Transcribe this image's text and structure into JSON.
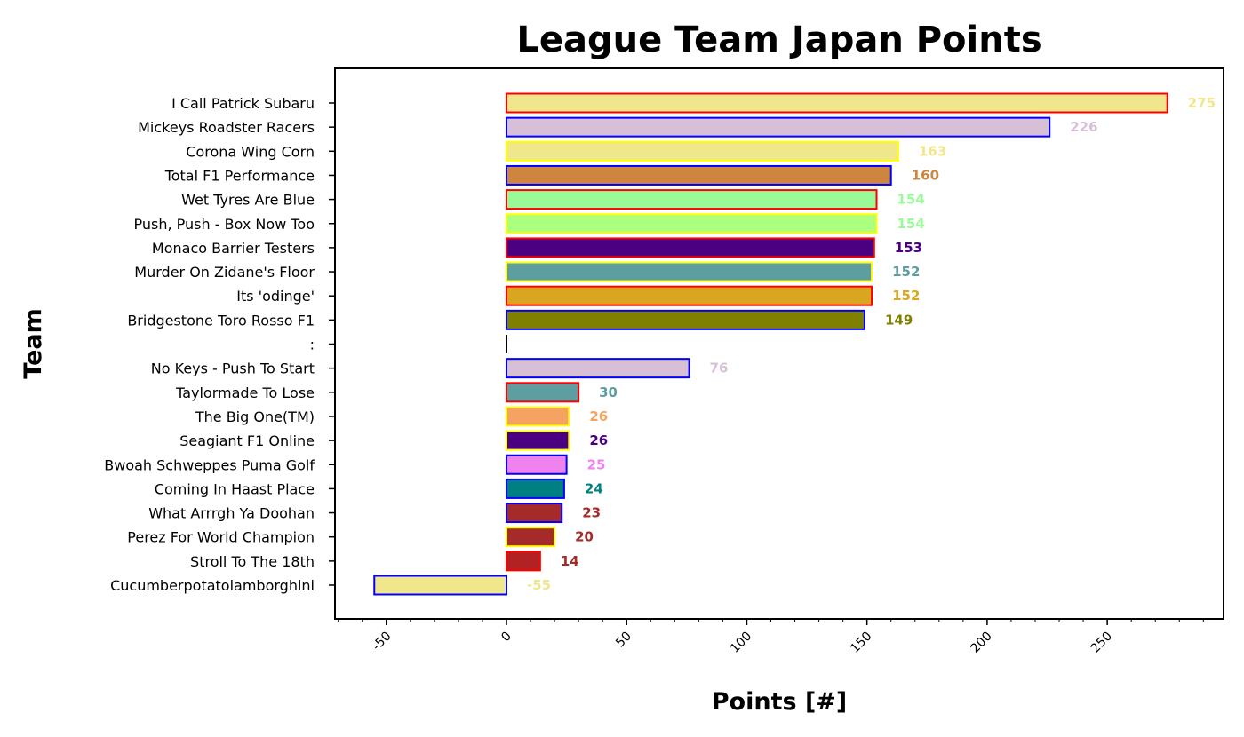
{
  "chart_data": {
    "type": "bar",
    "orientation": "horizontal",
    "title": "League Team Japan Points",
    "xlabel": "Points [#]",
    "ylabel": "Team",
    "xlim": [
      -70,
      297
    ],
    "xticks": [
      "-50",
      "0",
      "50",
      "100",
      "150",
      "200",
      "250"
    ],
    "xtick_values": [
      -50,
      0,
      50,
      100,
      150,
      200,
      250
    ],
    "grid": false,
    "categories": [
      "I Call Patrick Subaru",
      "Mickeys Roadster Racers",
      "Corona Wing Corn",
      "Total F1 Performance",
      "Wet Tyres Are Blue",
      "Push, Push - Box Now Too",
      "Monaco Barrier Testers",
      "Murder On Zidane's Floor",
      "Its 'odinge'",
      "Bridgestone Toro Rosso F1",
      ":",
      "No Keys - Push To Start",
      "Taylormade To Lose",
      "The Big One(TM)",
      "Seagiant F1 Online",
      "Bwoah Schweppes Puma Golf",
      "Coming In Haast Place",
      "What Arrrgh Ya Doohan",
      "Perez For World Champion",
      "Stroll To The 18th",
      "Cucumberpotatolamborghini"
    ],
    "values": [
      275,
      226,
      163,
      160,
      154,
      154,
      153,
      152,
      152,
      149,
      0,
      76,
      30,
      26,
      26,
      25,
      24,
      23,
      20,
      14,
      -55
    ],
    "value_labels": [
      "275",
      "226",
      "163",
      "160",
      "154",
      "154",
      "153",
      "152",
      "152",
      "149",
      "",
      "76",
      "30",
      "26",
      "26",
      "25",
      "24",
      "23",
      "20",
      "14",
      "-55"
    ],
    "fill_colors": [
      "#f0e68c",
      "#d8bfd8",
      "#f0e68c",
      "#cd853f",
      "#98fb98",
      "#adff7f",
      "#4b0082",
      "#5f9ea0",
      "#daa520",
      "#808000",
      "#000000",
      "#d8bfd8",
      "#5f9ea0",
      "#f4a460",
      "#4b0082",
      "#ee82ee",
      "#008080",
      "#a52a2a",
      "#a52a2a",
      "#b22222",
      "#f0e68c"
    ],
    "edge_colors": [
      "#ff0000",
      "#0000ff",
      "#ffff00",
      "#0000ff",
      "#ff0000",
      "#ffff00",
      "#ff0000",
      "#ffff00",
      "#ff0000",
      "#0000ff",
      "#000000",
      "#0000ff",
      "#ff0000",
      "#ffff00",
      "#ffff00",
      "#0000ff",
      "#0000ff",
      "#0000ff",
      "#ffff00",
      "#ff0000",
      "#0000ff"
    ],
    "label_colors": [
      "#f0e68c",
      "#d8bfd8",
      "#f0e68c",
      "#cd853f",
      "#98fb98",
      "#98fb98",
      "#4b0082",
      "#5f9ea0",
      "#daa520",
      "#808000",
      "#000000",
      "#d8bfd8",
      "#5f9ea0",
      "#f4a460",
      "#4b0082",
      "#ee82ee",
      "#008080",
      "#a52a2a",
      "#a52a2a",
      "#a52a2a",
      "#f0e68c"
    ]
  }
}
